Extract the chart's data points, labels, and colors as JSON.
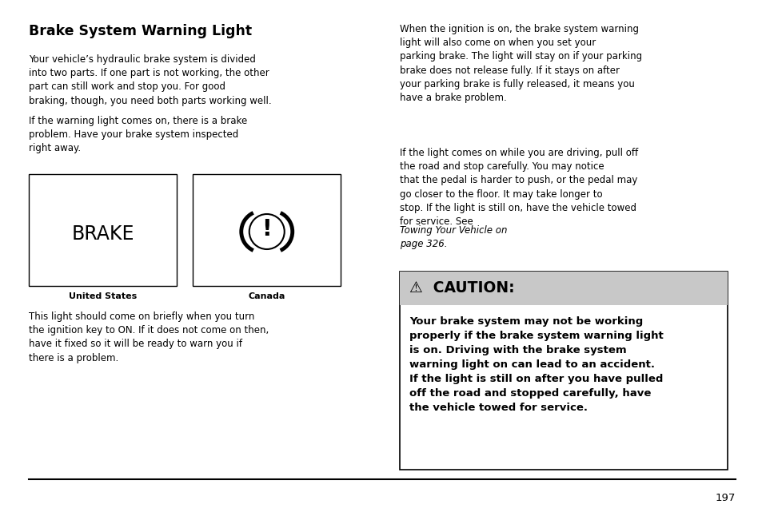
{
  "title": "Brake System Warning Light",
  "bg_color": "#ffffff",
  "text_color": "#000000",
  "page_number": "197",
  "para1": "Your vehicle’s hydraulic brake system is divided\ninto two parts. If one part is not working, the other\npart can still work and stop you. For good\nbraking, though, you need both parts working well.",
  "para2": "If the warning light comes on, there is a brake\nproblem. Have your brake system inspected\nright away.",
  "para3": "This light should come on briefly when you turn\nthe ignition key to ON. If it does not come on then,\nhave it fixed so it will be ready to warn you if\nthere is a problem.",
  "right_para1": "When the ignition is on, the brake system warning\nlight will also come on when you set your\nparking brake. The light will stay on if your parking\nbrake does not release fully. If it stays on after\nyour parking brake is fully released, it means you\nhave a brake problem.",
  "right_para2": "If the light comes on while you are driving, pull off\nthe road and stop carefully. You may notice\nthat the pedal is harder to push, or the pedal may\ngo closer to the floor. It may take longer to\nstop. If the light is still on, have the vehicle towed\nfor service. See Towing Your Vehicle on\npage 326.",
  "caution_header": "⚠  CAUTION:",
  "caution_text": "Your brake system may not be working\nproperly if the brake system warning light\nis on. Driving with the brake system\nwarning light on can lead to an accident.\nIf the light is still on after you have pulled\noff the road and stopped carefully, have\nthe vehicle towed for service.",
  "caution_header_bg": "#c8c8c8",
  "brake_label": "BRAKE",
  "us_label": "United States",
  "canada_label": "Canada",
  "lc": 0.038,
  "rc": 0.524,
  "fs_body": 8.5,
  "fs_title": 12.5,
  "fs_label": 8.0,
  "fs_caution_header": 13.5,
  "fs_caution_body": 9.5,
  "fs_brake": 17.0
}
